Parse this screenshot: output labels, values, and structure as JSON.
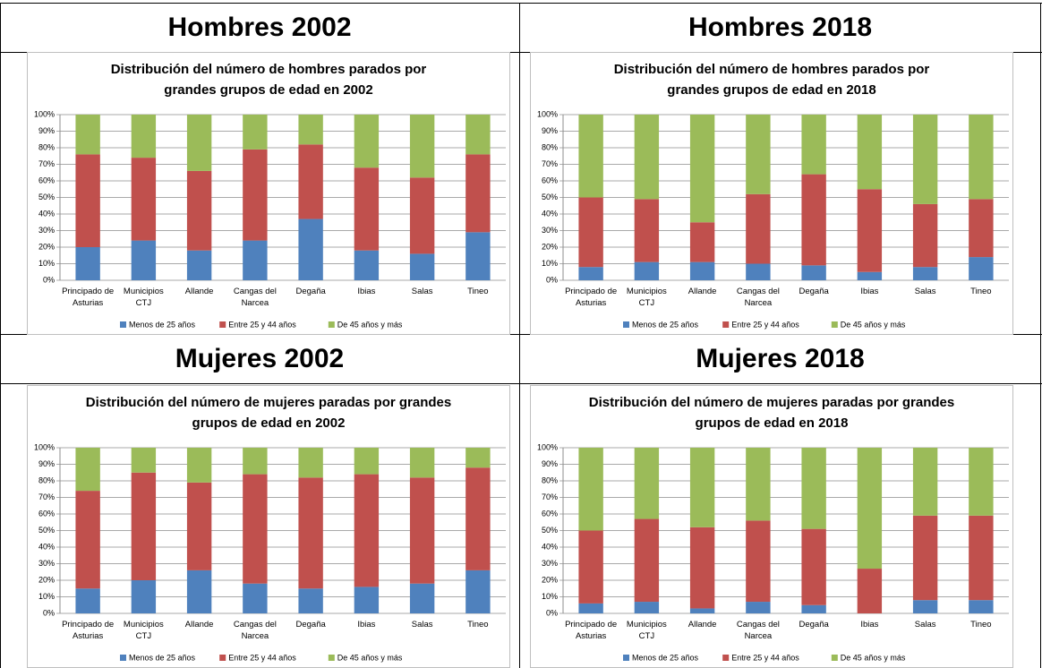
{
  "headings": [
    "Hombres 2002",
    "Hombres 2018",
    "Mujeres 2002",
    "Mujeres 2018"
  ],
  "chart_data": [
    {
      "type": "stacked_bar",
      "title": "Distribución del número de hombres parados por grandes grupos de edad en 2002",
      "categories": [
        "Principado de Asturias",
        "Municipios CTJ",
        "Allande",
        "Cangas del Narcea",
        "Degaña",
        "Ibias",
        "Salas",
        "Tineo"
      ],
      "series": [
        {
          "name": "Menos de 25 años",
          "color": "#4f81bd",
          "values": [
            20,
            24,
            18,
            24,
            37,
            18,
            16,
            29
          ]
        },
        {
          "name": "Entre 25 y 44 años",
          "color": "#c0504d",
          "values": [
            56,
            50,
            48,
            55,
            45,
            50,
            46,
            47
          ]
        },
        {
          "name": "De 45 años y más",
          "color": "#9bbb59",
          "values": [
            24,
            26,
            34,
            21,
            18,
            32,
            38,
            24
          ]
        }
      ],
      "ylim": [
        0,
        100
      ],
      "yticks": [
        {
          "value": 0,
          "label": "0%"
        },
        {
          "value": 10,
          "label": "10%"
        },
        {
          "value": 20,
          "label": "20%"
        },
        {
          "value": 30,
          "label": "30%"
        },
        {
          "value": 40,
          "label": "40%"
        },
        {
          "value": 50,
          "label": "50%"
        },
        {
          "value": 60,
          "label": "60%"
        },
        {
          "value": 70,
          "label": "70%"
        },
        {
          "value": 80,
          "label": "80%"
        },
        {
          "value": 90,
          "label": "90%"
        },
        {
          "value": 100,
          "label": "100%"
        }
      ],
      "grid": true,
      "legend": "bottom"
    },
    {
      "type": "stacked_bar",
      "title": "Distribución del número de hombres parados por grandes grupos de edad en 2018",
      "categories": [
        "Principado de Asturias",
        "Municipios CTJ",
        "Allande",
        "Cangas del Narcea",
        "Degaña",
        "Ibias",
        "Salas",
        "Tineo"
      ],
      "series": [
        {
          "name": "Menos de 25 años",
          "color": "#4f81bd",
          "values": [
            8,
            11,
            11,
            10,
            9,
            5,
            8,
            14
          ]
        },
        {
          "name": "Entre 25 y 44 años",
          "color": "#c0504d",
          "values": [
            42,
            38,
            24,
            42,
            55,
            50,
            38,
            35
          ]
        },
        {
          "name": "De 45 años y más",
          "color": "#9bbb59",
          "values": [
            50,
            51,
            65,
            48,
            36,
            45,
            54,
            51
          ]
        }
      ],
      "ylim": [
        0,
        100
      ],
      "yticks": [
        {
          "value": 0,
          "label": "0%"
        },
        {
          "value": 10,
          "label": "10%"
        },
        {
          "value": 20,
          "label": "20%"
        },
        {
          "value": 30,
          "label": "30%"
        },
        {
          "value": 40,
          "label": "40%"
        },
        {
          "value": 50,
          "label": "50%"
        },
        {
          "value": 60,
          "label": "60%"
        },
        {
          "value": 70,
          "label": "70%"
        },
        {
          "value": 80,
          "label": "80%"
        },
        {
          "value": 90,
          "label": "90%"
        },
        {
          "value": 100,
          "label": "100%"
        }
      ],
      "grid": true,
      "legend": "bottom"
    },
    {
      "type": "stacked_bar",
      "title": "Distribución del número de mujeres paradas por grandes grupos de edad en 2002",
      "categories": [
        "Principado de Asturias",
        "Municipios CTJ",
        "Allande",
        "Cangas del Narcea",
        "Degaña",
        "Ibias",
        "Salas",
        "Tineo"
      ],
      "series": [
        {
          "name": "Menos de 25 años",
          "color": "#4f81bd",
          "values": [
            15,
            20,
            26,
            18,
            15,
            16,
            18,
            26
          ]
        },
        {
          "name": "Entre 25 y 44 años",
          "color": "#c0504d",
          "values": [
            59,
            65,
            53,
            66,
            67,
            68,
            64,
            62
          ]
        },
        {
          "name": "De 45 años y más",
          "color": "#9bbb59",
          "values": [
            26,
            15,
            21,
            16,
            18,
            16,
            18,
            12
          ]
        }
      ],
      "ylim": [
        0,
        100
      ],
      "yticks": [
        {
          "value": 0,
          "label": "0%"
        },
        {
          "value": 10,
          "label": "10%"
        },
        {
          "value": 20,
          "label": "20%"
        },
        {
          "value": 30,
          "label": "30%"
        },
        {
          "value": 40,
          "label": "40%"
        },
        {
          "value": 50,
          "label": "50%"
        },
        {
          "value": 60,
          "label": "60%"
        },
        {
          "value": 70,
          "label": "70%"
        },
        {
          "value": 80,
          "label": "80%"
        },
        {
          "value": 90,
          "label": "90%"
        },
        {
          "value": 100,
          "label": "100%"
        }
      ],
      "grid": true,
      "legend": "bottom"
    },
    {
      "type": "stacked_bar",
      "title": "Distribución del número de mujeres paradas por grandes grupos de edad en 2018",
      "categories": [
        "Principado de Asturias",
        "Municipios CTJ",
        "Allande",
        "Cangas del Narcea",
        "Degaña",
        "Ibias",
        "Salas",
        "Tineo"
      ],
      "series": [
        {
          "name": "Menos de 25 años",
          "color": "#4f81bd",
          "values": [
            6,
            7,
            3,
            7,
            5,
            0,
            8,
            8
          ]
        },
        {
          "name": "Entre 25 y 44 años",
          "color": "#c0504d",
          "values": [
            44,
            50,
            49,
            49,
            46,
            27,
            51,
            51
          ]
        },
        {
          "name": "De 45 años y más",
          "color": "#9bbb59",
          "values": [
            50,
            43,
            48,
            44,
            49,
            73,
            41,
            41
          ]
        }
      ],
      "ylim": [
        0,
        100
      ],
      "yticks": [
        {
          "value": 0,
          "label": "0%"
        },
        {
          "value": 10,
          "label": "10%"
        },
        {
          "value": 20,
          "label": "20%"
        },
        {
          "value": 30,
          "label": "30%"
        },
        {
          "value": 40,
          "label": "40%"
        },
        {
          "value": 50,
          "label": "50%"
        },
        {
          "value": 60,
          "label": "60%"
        },
        {
          "value": 70,
          "label": "70%"
        },
        {
          "value": 80,
          "label": "80%"
        },
        {
          "value": 90,
          "label": "90%"
        },
        {
          "value": 100,
          "label": "100%"
        }
      ],
      "grid": true,
      "legend": "bottom"
    }
  ]
}
